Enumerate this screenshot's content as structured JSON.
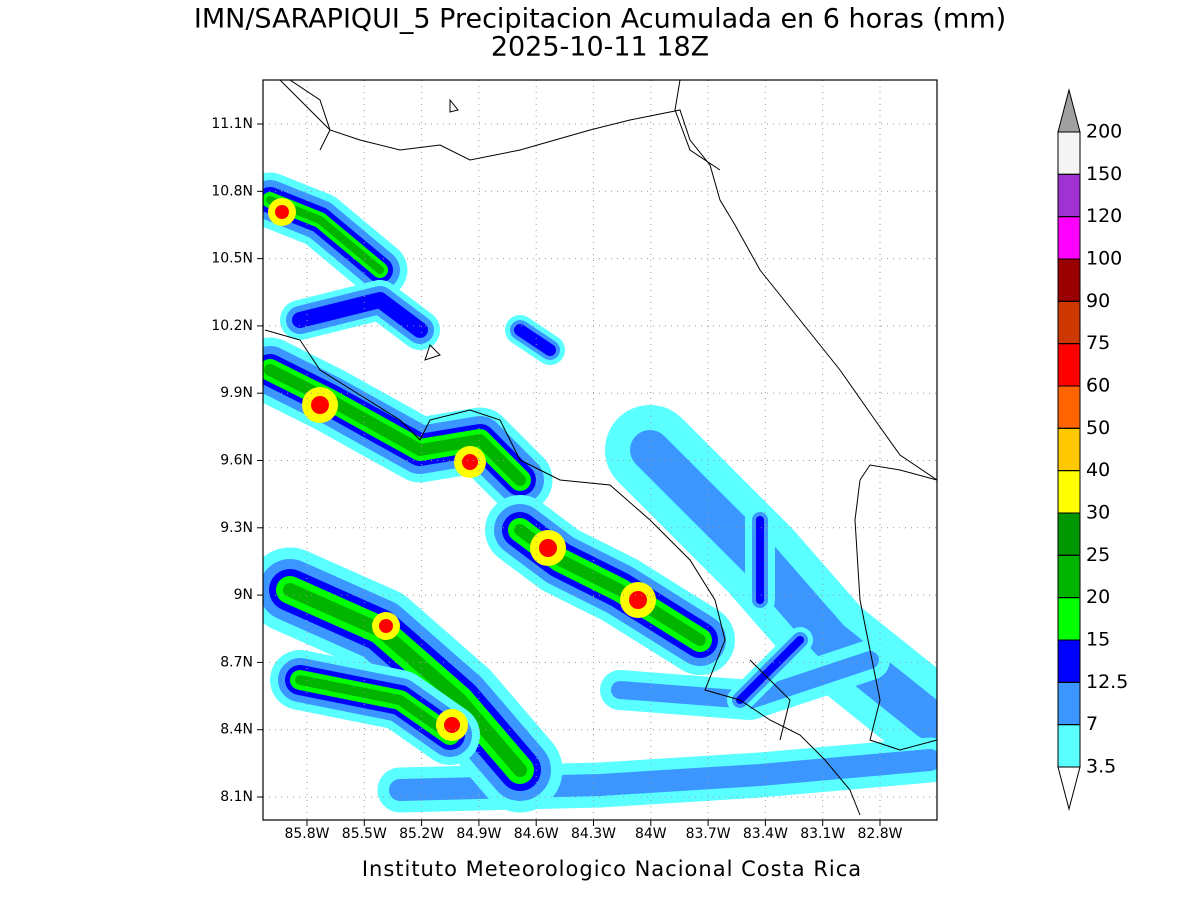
{
  "title": [
    "IMN/SARAPIQUI_5 Precipitacion Acumulada en 6 horas (mm)",
    "2025-10-11 18Z"
  ],
  "map": {
    "lat_labels": [
      "11.1N",
      "10.8N",
      "10.5N",
      "10.2N",
      "9.9N",
      "9.6N",
      "9.3N",
      "9N",
      "8.7N",
      "8.4N",
      "8.1N"
    ],
    "lon_labels": [
      "85.8W",
      "85.5W",
      "85.2W",
      "84.9W",
      "84.6W",
      "84.3W",
      "84W",
      "83.7W",
      "83.4W",
      "83.1W",
      "82.8W"
    ]
  },
  "colorbar": {
    "levels": [
      200,
      150,
      120,
      100,
      90,
      75,
      60,
      50,
      40,
      30,
      25,
      20,
      15,
      12.5,
      7,
      3.5
    ],
    "colors": [
      "#f4f4f4",
      "#a032d2",
      "#ff00ff",
      "#9b0000",
      "#cd3700",
      "#ff0000",
      "#ff6400",
      "#ffc800",
      "#ffff00",
      "#009600",
      "#00b400",
      "#00ff00",
      "#0000ff",
      "#3c96ff",
      "#5affff"
    ],
    "over_color": "#a0a0a0",
    "under_color": "#ffffff"
  },
  "footer": "Instituto Meteorologico Nacional Costa Rica"
}
